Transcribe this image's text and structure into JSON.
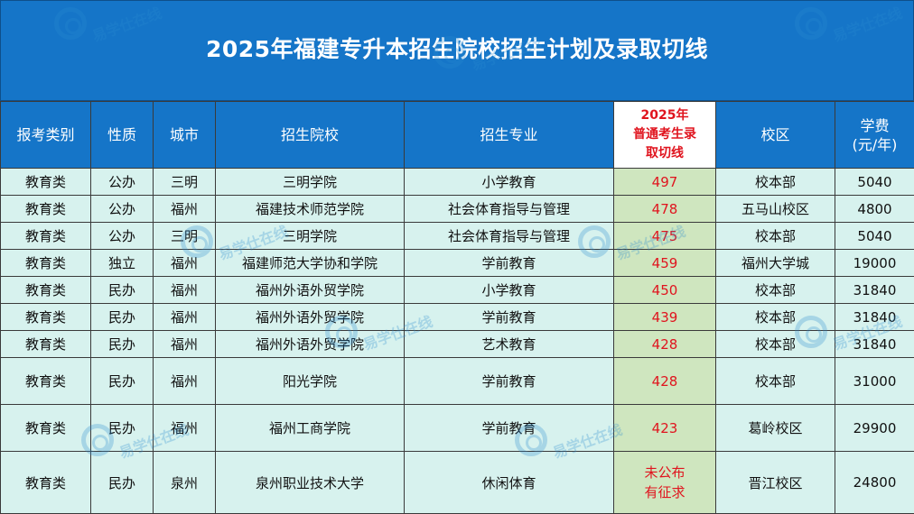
{
  "title": "2025年福建专升本招生院校招生计划及录取切线",
  "headers": {
    "category": "报考类别",
    "nature": "性质",
    "city": "城市",
    "school": "招生院校",
    "major": "招生专业",
    "cutoff_line1": "2025年",
    "cutoff_line2": "普通考生录",
    "cutoff_line3": "取切线",
    "campus": "校区",
    "fee_line1": "学费",
    "fee_line2": "(元/年)"
  },
  "rows": [
    {
      "category": "教育类",
      "nature": "公办",
      "city": "三明",
      "school": "三明学院",
      "major": "小学教育",
      "cutoff": "497",
      "campus": "校本部",
      "fee": "5040"
    },
    {
      "category": "教育类",
      "nature": "公办",
      "city": "福州",
      "school": "福建技术师范学院",
      "major": "社会体育指导与管理",
      "cutoff": "478",
      "campus": "五马山校区",
      "fee": "4800"
    },
    {
      "category": "教育类",
      "nature": "公办",
      "city": "三明",
      "school": "三明学院",
      "major": "社会体育指导与管理",
      "cutoff": "475",
      "campus": "校本部",
      "fee": "5040"
    },
    {
      "category": "教育类",
      "nature": "独立",
      "city": "福州",
      "school": "福建师范大学协和学院",
      "major": "学前教育",
      "cutoff": "459",
      "campus": "福州大学城",
      "fee": "19000"
    },
    {
      "category": "教育类",
      "nature": "民办",
      "city": "福州",
      "school": "福州外语外贸学院",
      "major": "小学教育",
      "cutoff": "450",
      "campus": "校本部",
      "fee": "31840"
    },
    {
      "category": "教育类",
      "nature": "民办",
      "city": "福州",
      "school": "福州外语外贸学院",
      "major": "学前教育",
      "cutoff": "439",
      "campus": "校本部",
      "fee": "31840"
    },
    {
      "category": "教育类",
      "nature": "民办",
      "city": "福州",
      "school": "福州外语外贸学院",
      "major": "艺术教育",
      "cutoff": "428",
      "campus": "校本部",
      "fee": "31840"
    },
    {
      "category": "教育类",
      "nature": "民办",
      "city": "福州",
      "school": "阳光学院",
      "major": "学前教育",
      "cutoff": "428",
      "campus": "校本部",
      "fee": "31000"
    },
    {
      "category": "教育类",
      "nature": "民办",
      "city": "福州",
      "school": "福州工商学院",
      "major": "学前教育",
      "cutoff": "423",
      "campus": "葛岭校区",
      "fee": "29900"
    },
    {
      "category": "教育类",
      "nature": "民办",
      "city": "泉州",
      "school": "泉州职业技术大学",
      "major": "休闲体育",
      "cutoff_line1": "未公布",
      "cutoff_line2": "有征求",
      "campus": "晋江校区",
      "fee": "24800"
    }
  ],
  "watermark": {
    "text": "易学仕在线",
    "icon": "swirl-logo-icon"
  },
  "colors": {
    "header_blue": "#1575c8",
    "row_mint": "#d7f2ee",
    "cutoff_green": "#cfe6bf",
    "cutoff_red": "#e0141e"
  }
}
